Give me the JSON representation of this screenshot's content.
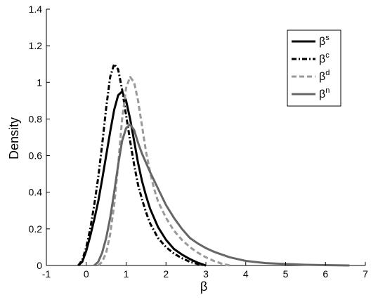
{
  "chart_data": {
    "type": "line",
    "title": "",
    "xlabel": "β",
    "ylabel": "Density",
    "xlim": [
      -1,
      7
    ],
    "ylim": [
      0,
      1.4
    ],
    "xticks": [
      "-1",
      "0",
      "1",
      "2",
      "3",
      "4",
      "5",
      "6",
      "7"
    ],
    "yticks": [
      "0",
      "0.2",
      "0.4",
      "0.6",
      "0.8",
      "1",
      "1.2",
      "1.4"
    ],
    "grid": false,
    "legend_position": "top-right",
    "series": [
      {
        "name_base": "β",
        "name_sup": "s",
        "color": "#000000",
        "style": "solid",
        "points": [
          [
            -0.2,
            0.0
          ],
          [
            -0.1,
            0.02
          ],
          [
            0.0,
            0.08
          ],
          [
            0.1,
            0.16
          ],
          [
            0.2,
            0.25
          ],
          [
            0.3,
            0.35
          ],
          [
            0.4,
            0.47
          ],
          [
            0.5,
            0.6
          ],
          [
            0.6,
            0.73
          ],
          [
            0.7,
            0.85
          ],
          [
            0.8,
            0.93
          ],
          [
            0.9,
            0.95
          ],
          [
            1.0,
            0.9
          ],
          [
            1.1,
            0.8
          ],
          [
            1.2,
            0.68
          ],
          [
            1.3,
            0.56
          ],
          [
            1.4,
            0.46
          ],
          [
            1.5,
            0.38
          ],
          [
            1.6,
            0.31
          ],
          [
            1.8,
            0.21
          ],
          [
            2.0,
            0.14
          ],
          [
            2.2,
            0.09
          ],
          [
            2.4,
            0.06
          ],
          [
            2.6,
            0.035
          ],
          [
            2.8,
            0.015
          ],
          [
            3.0,
            0.0
          ]
        ]
      },
      {
        "name_base": "β",
        "name_sup": "c",
        "color": "#000000",
        "style": "dashdot",
        "points": [
          [
            -0.2,
            0.0
          ],
          [
            -0.1,
            0.03
          ],
          [
            0.0,
            0.1
          ],
          [
            0.1,
            0.2
          ],
          [
            0.2,
            0.33
          ],
          [
            0.3,
            0.48
          ],
          [
            0.4,
            0.66
          ],
          [
            0.5,
            0.86
          ],
          [
            0.6,
            1.03
          ],
          [
            0.7,
            1.1
          ],
          [
            0.8,
            1.07
          ],
          [
            0.9,
            0.96
          ],
          [
            1.0,
            0.82
          ],
          [
            1.1,
            0.68
          ],
          [
            1.2,
            0.55
          ],
          [
            1.3,
            0.44
          ],
          [
            1.4,
            0.36
          ],
          [
            1.5,
            0.29
          ],
          [
            1.6,
            0.23
          ],
          [
            1.8,
            0.15
          ],
          [
            2.0,
            0.1
          ],
          [
            2.2,
            0.065
          ],
          [
            2.4,
            0.04
          ],
          [
            2.6,
            0.02
          ],
          [
            2.8,
            0.008
          ],
          [
            3.0,
            0.0
          ]
        ]
      },
      {
        "name_base": "β",
        "name_sup": "d",
        "color": "#999999",
        "style": "dashed",
        "points": [
          [
            0.3,
            0.0
          ],
          [
            0.4,
            0.02
          ],
          [
            0.5,
            0.07
          ],
          [
            0.6,
            0.17
          ],
          [
            0.7,
            0.33
          ],
          [
            0.8,
            0.55
          ],
          [
            0.9,
            0.8
          ],
          [
            1.0,
            0.97
          ],
          [
            1.1,
            1.03
          ],
          [
            1.2,
            1.0
          ],
          [
            1.3,
            0.9
          ],
          [
            1.4,
            0.76
          ],
          [
            1.5,
            0.62
          ],
          [
            1.6,
            0.51
          ],
          [
            1.7,
            0.42
          ],
          [
            1.8,
            0.35
          ],
          [
            2.0,
            0.26
          ],
          [
            2.2,
            0.19
          ],
          [
            2.4,
            0.14
          ],
          [
            2.6,
            0.1
          ],
          [
            2.8,
            0.07
          ],
          [
            3.0,
            0.045
          ],
          [
            3.2,
            0.025
          ],
          [
            3.4,
            0.01
          ],
          [
            3.6,
            0.0
          ]
        ]
      },
      {
        "name_base": "β",
        "name_sup": "n",
        "color": "#666666",
        "style": "solid",
        "points": [
          [
            0.2,
            0.0
          ],
          [
            0.3,
            0.02
          ],
          [
            0.4,
            0.07
          ],
          [
            0.5,
            0.15
          ],
          [
            0.6,
            0.26
          ],
          [
            0.7,
            0.4
          ],
          [
            0.8,
            0.55
          ],
          [
            0.9,
            0.68
          ],
          [
            1.0,
            0.75
          ],
          [
            1.1,
            0.77
          ],
          [
            1.2,
            0.74
          ],
          [
            1.3,
            0.67
          ],
          [
            1.4,
            0.61
          ],
          [
            1.5,
            0.56
          ],
          [
            1.6,
            0.51
          ],
          [
            1.8,
            0.42
          ],
          [
            2.0,
            0.33
          ],
          [
            2.2,
            0.26
          ],
          [
            2.4,
            0.2
          ],
          [
            2.6,
            0.15
          ],
          [
            2.8,
            0.12
          ],
          [
            3.0,
            0.095
          ],
          [
            3.2,
            0.075
          ],
          [
            3.4,
            0.06
          ],
          [
            3.6,
            0.045
          ],
          [
            3.8,
            0.035
          ],
          [
            4.0,
            0.025
          ],
          [
            4.5,
            0.013
          ],
          [
            5.0,
            0.008
          ],
          [
            5.5,
            0.004
          ],
          [
            6.0,
            0.002
          ],
          [
            6.6,
            0.0
          ]
        ]
      }
    ]
  }
}
